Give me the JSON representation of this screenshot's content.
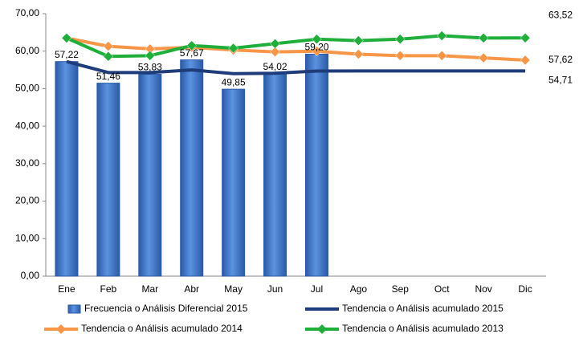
{
  "chart_data": {
    "type": "bar",
    "categories": [
      "Ene",
      "Feb",
      "Mar",
      "Abr",
      "May",
      "Jun",
      "Jul",
      "Ago",
      "Sep",
      "Oct",
      "Nov",
      "Dic"
    ],
    "ylim": [
      0,
      70
    ],
    "yticks": [
      {
        "value": 0,
        "label": "0,00"
      },
      {
        "value": 10,
        "label": "10,00"
      },
      {
        "value": 20,
        "label": "20,00"
      },
      {
        "value": 30,
        "label": "30,00"
      },
      {
        "value": 40,
        "label": "40,00"
      },
      {
        "value": 50,
        "label": "50,00"
      },
      {
        "value": 60,
        "label": "60,00"
      },
      {
        "value": 70,
        "label": "70,00"
      }
    ],
    "grid": false,
    "legend": "bottom",
    "series": [
      {
        "name": "Frecuencia o Análisis Diferencial 2015",
        "type": "bar",
        "color": "#3d74c6",
        "values": [
          57.22,
          51.46,
          53.83,
          57.67,
          49.85,
          54.02,
          59.2,
          null,
          null,
          null,
          null,
          null
        ],
        "value_labels": [
          "57,22",
          "51,46",
          "53,83",
          "57,67",
          "49,85",
          "54,02",
          "59,20",
          null,
          null,
          null,
          null,
          null
        ]
      },
      {
        "name": "Tendencia o Análisis acumulado 2015",
        "type": "line",
        "color": "#1f3c7a",
        "marker": false,
        "values": [
          57.22,
          54.3,
          54.3,
          55.0,
          54.0,
          54.1,
          54.7,
          54.71,
          54.71,
          54.71,
          54.71,
          54.71
        ],
        "value_labels": [
          null,
          null,
          null,
          null,
          null,
          null,
          null,
          null,
          null,
          null,
          null,
          "54,71"
        ]
      },
      {
        "name": "Tendencia o Análisis acumulado 2014",
        "type": "line",
        "color": "#f79646",
        "marker": true,
        "values": [
          63.5,
          61.3,
          60.6,
          61.0,
          60.3,
          59.8,
          60.0,
          59.2,
          58.8,
          58.8,
          58.2,
          57.62
        ],
        "value_labels": [
          null,
          null,
          null,
          null,
          null,
          null,
          null,
          null,
          null,
          null,
          null,
          "57,62"
        ]
      },
      {
        "name": "Tendencia o Análisis acumulado 2013",
        "type": "line",
        "color": "#1fae3a",
        "marker": true,
        "values": [
          63.5,
          58.6,
          58.8,
          61.5,
          60.8,
          62.0,
          63.2,
          62.8,
          63.2,
          64.1,
          63.5,
          63.52
        ],
        "value_labels": [
          null,
          null,
          null,
          null,
          null,
          null,
          null,
          null,
          null,
          null,
          null,
          "63,52"
        ]
      }
    ]
  }
}
